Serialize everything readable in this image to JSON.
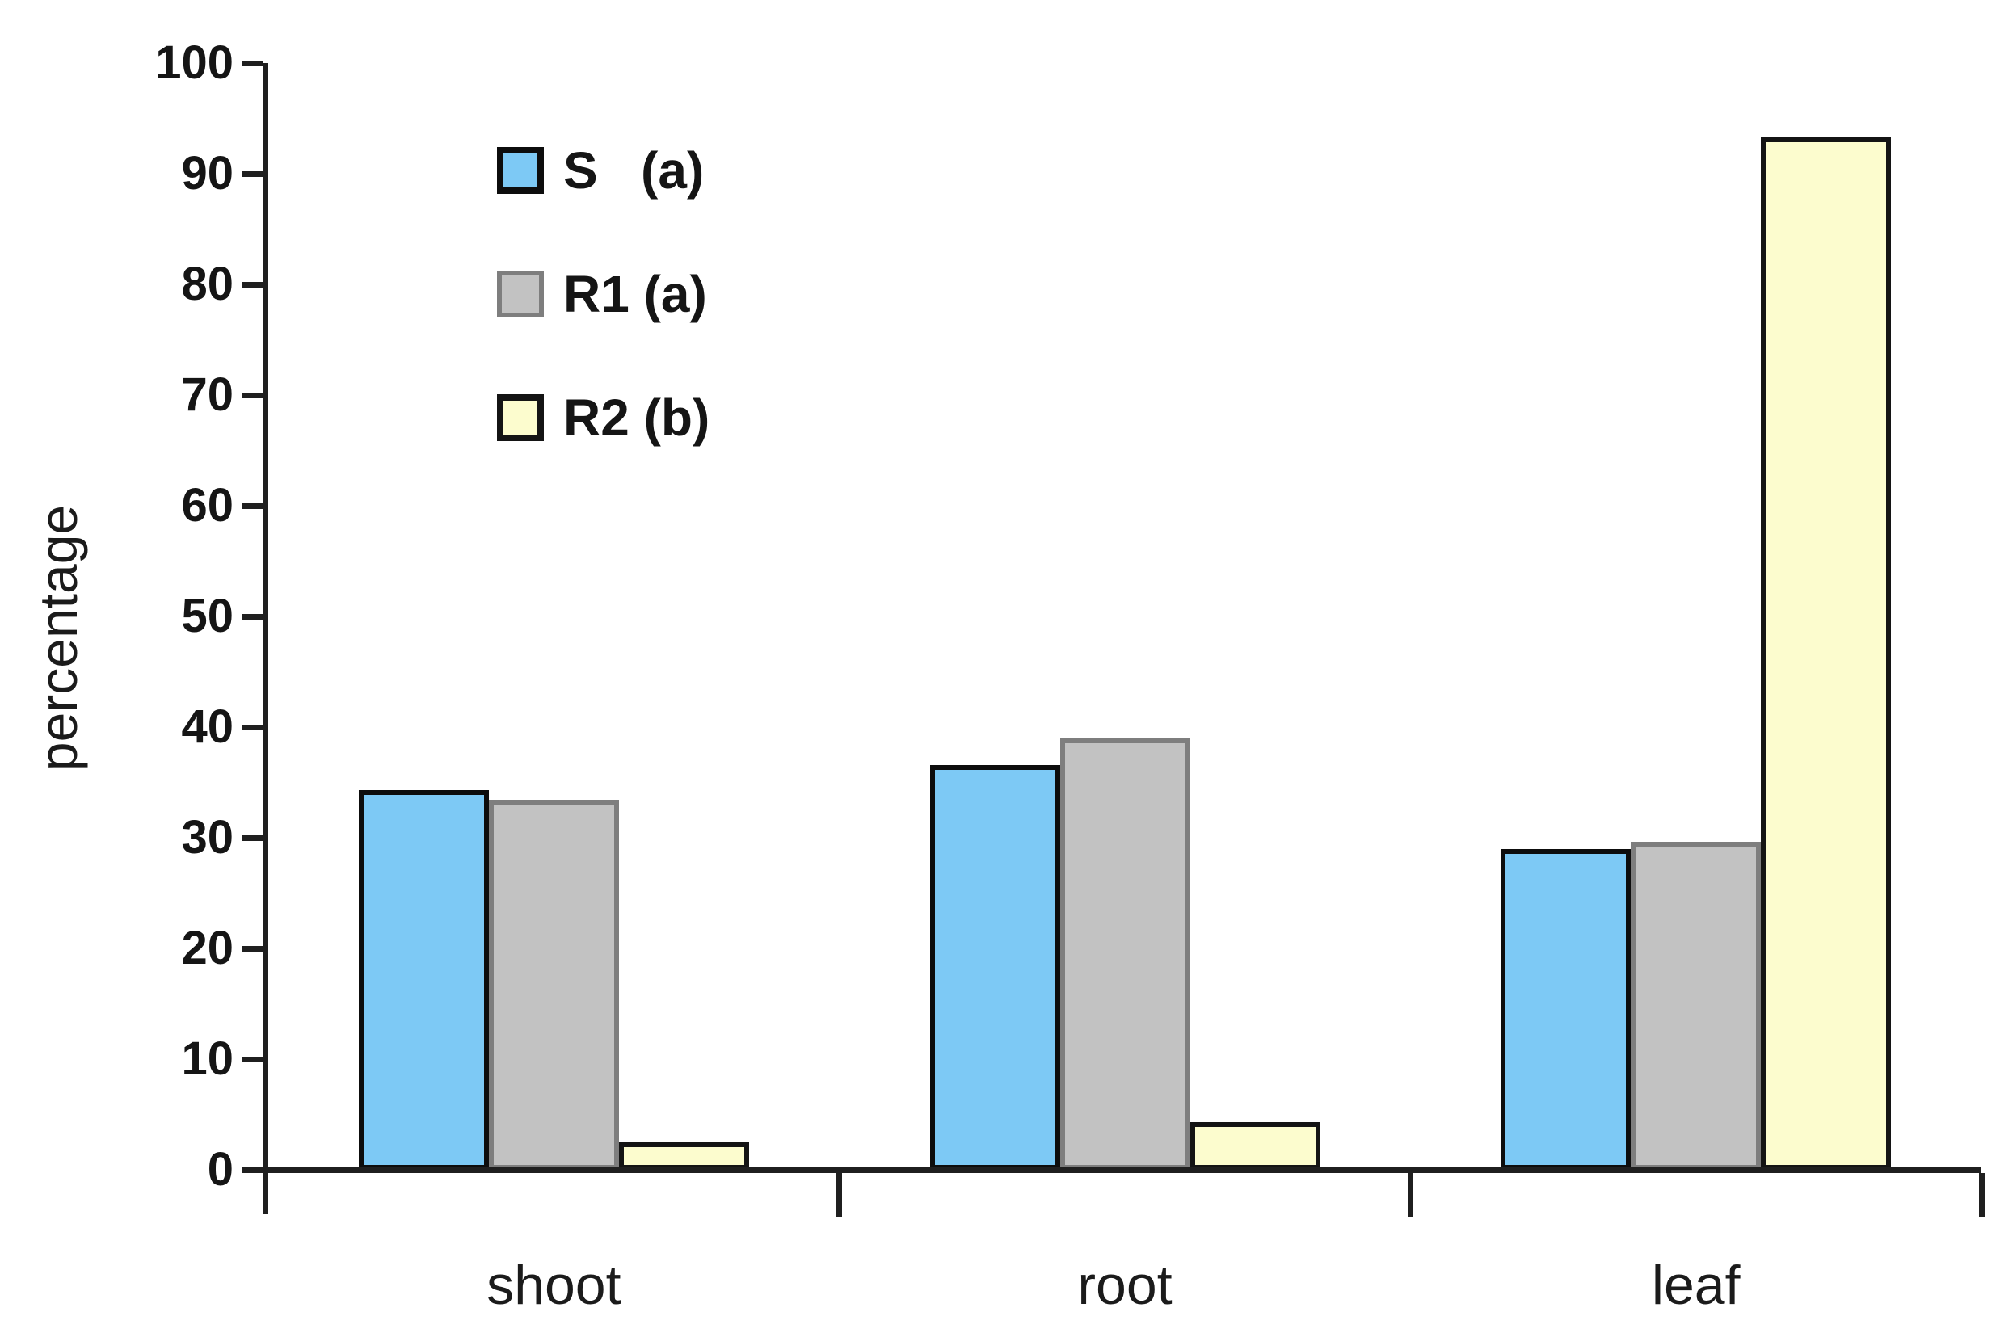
{
  "chart_data": {
    "type": "bar",
    "title": "",
    "categories": [
      "shoot",
      "root",
      "leaf"
    ],
    "series": [
      {
        "name": "S (a)",
        "color": "#7DC9F5",
        "border_color": "#0d0d0d",
        "values": [
          34.3,
          36.6,
          29.0
        ]
      },
      {
        "name": "R1 (a)",
        "color": "#C2C2C2",
        "border_color": "#7E7E7E",
        "values": [
          33.4,
          39.0,
          29.6
        ]
      },
      {
        "name": "R2 (b)",
        "color": "#FCFCCE",
        "border_color": "#141414",
        "values": [
          2.5,
          4.3,
          93.3
        ]
      }
    ],
    "legend_labels": [
      "S   (a)",
      "R1 (a)",
      "R2 (b)"
    ],
    "legend_position": "top-left",
    "xlabel": "",
    "ylabel": "percentage",
    "ylim": [
      0,
      100
    ],
    "y_ticks": [
      0,
      10,
      20,
      30,
      40,
      50,
      60,
      70,
      80,
      90,
      100
    ],
    "grid": false
  },
  "colors": {
    "axis": "#1f1f1f",
    "text": "#151515",
    "background": "#ffffff"
  }
}
